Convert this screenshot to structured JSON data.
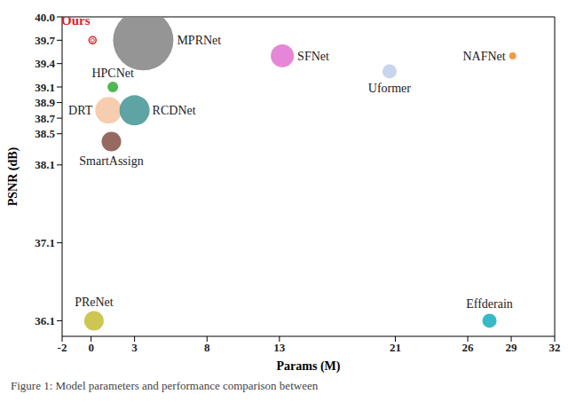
{
  "chart_data": {
    "type": "scatter",
    "x_label": "Params (M)",
    "y_label": "PSNR (dB)",
    "caption": "Figure 1: Model parameters and performance comparison between",
    "xlim": [
      -2,
      32
    ],
    "xticks": [
      -2,
      0,
      3,
      8,
      13,
      21,
      26,
      29,
      32
    ],
    "ylim": [
      35.9,
      40.0
    ],
    "yticks": [
      36.1,
      37.1,
      38.1,
      38.5,
      38.7,
      38.9,
      39.1,
      39.4,
      39.7,
      {
        "value": 40.0,
        "label": "40.0"
      }
    ],
    "points": [
      {
        "name": "Ours",
        "x": 0.1,
        "y": 39.7,
        "size": 16,
        "color": "#d62728",
        "marker": "hollow"
      },
      {
        "name": "MPRNet",
        "x": 3.6,
        "y": 39.7,
        "size": 1156,
        "color": "#8a8a8a"
      },
      {
        "name": "SFNet",
        "x": 13.2,
        "y": 39.5,
        "size": 169,
        "color": "#e27ad2"
      },
      {
        "name": "NAFNet",
        "x": 29.1,
        "y": 39.5,
        "size": 16,
        "color": "#f0912f"
      },
      {
        "name": "Uformer",
        "x": 20.6,
        "y": 39.3,
        "size": 64,
        "color": "#c3d0ea"
      },
      {
        "name": "HPCNet",
        "x": 1.5,
        "y": 39.1,
        "size": 36,
        "color": "#3cb043"
      },
      {
        "name": "DRT",
        "x": 1.2,
        "y": 38.8,
        "size": 225,
        "color": "#f5c9a6"
      },
      {
        "name": "RCDNet",
        "x": 3.0,
        "y": 38.8,
        "size": 289,
        "color": "#4e9a9a"
      },
      {
        "name": "SmartAssign",
        "x": 1.4,
        "y": 38.4,
        "size": 121,
        "color": "#8c5a50"
      },
      {
        "name": "PReNet",
        "x": 0.2,
        "y": 36.1,
        "size": 121,
        "color": "#c8c040"
      },
      {
        "name": "Effderain",
        "x": 27.5,
        "y": 36.1,
        "size": 64,
        "color": "#21b2c0"
      }
    ]
  }
}
